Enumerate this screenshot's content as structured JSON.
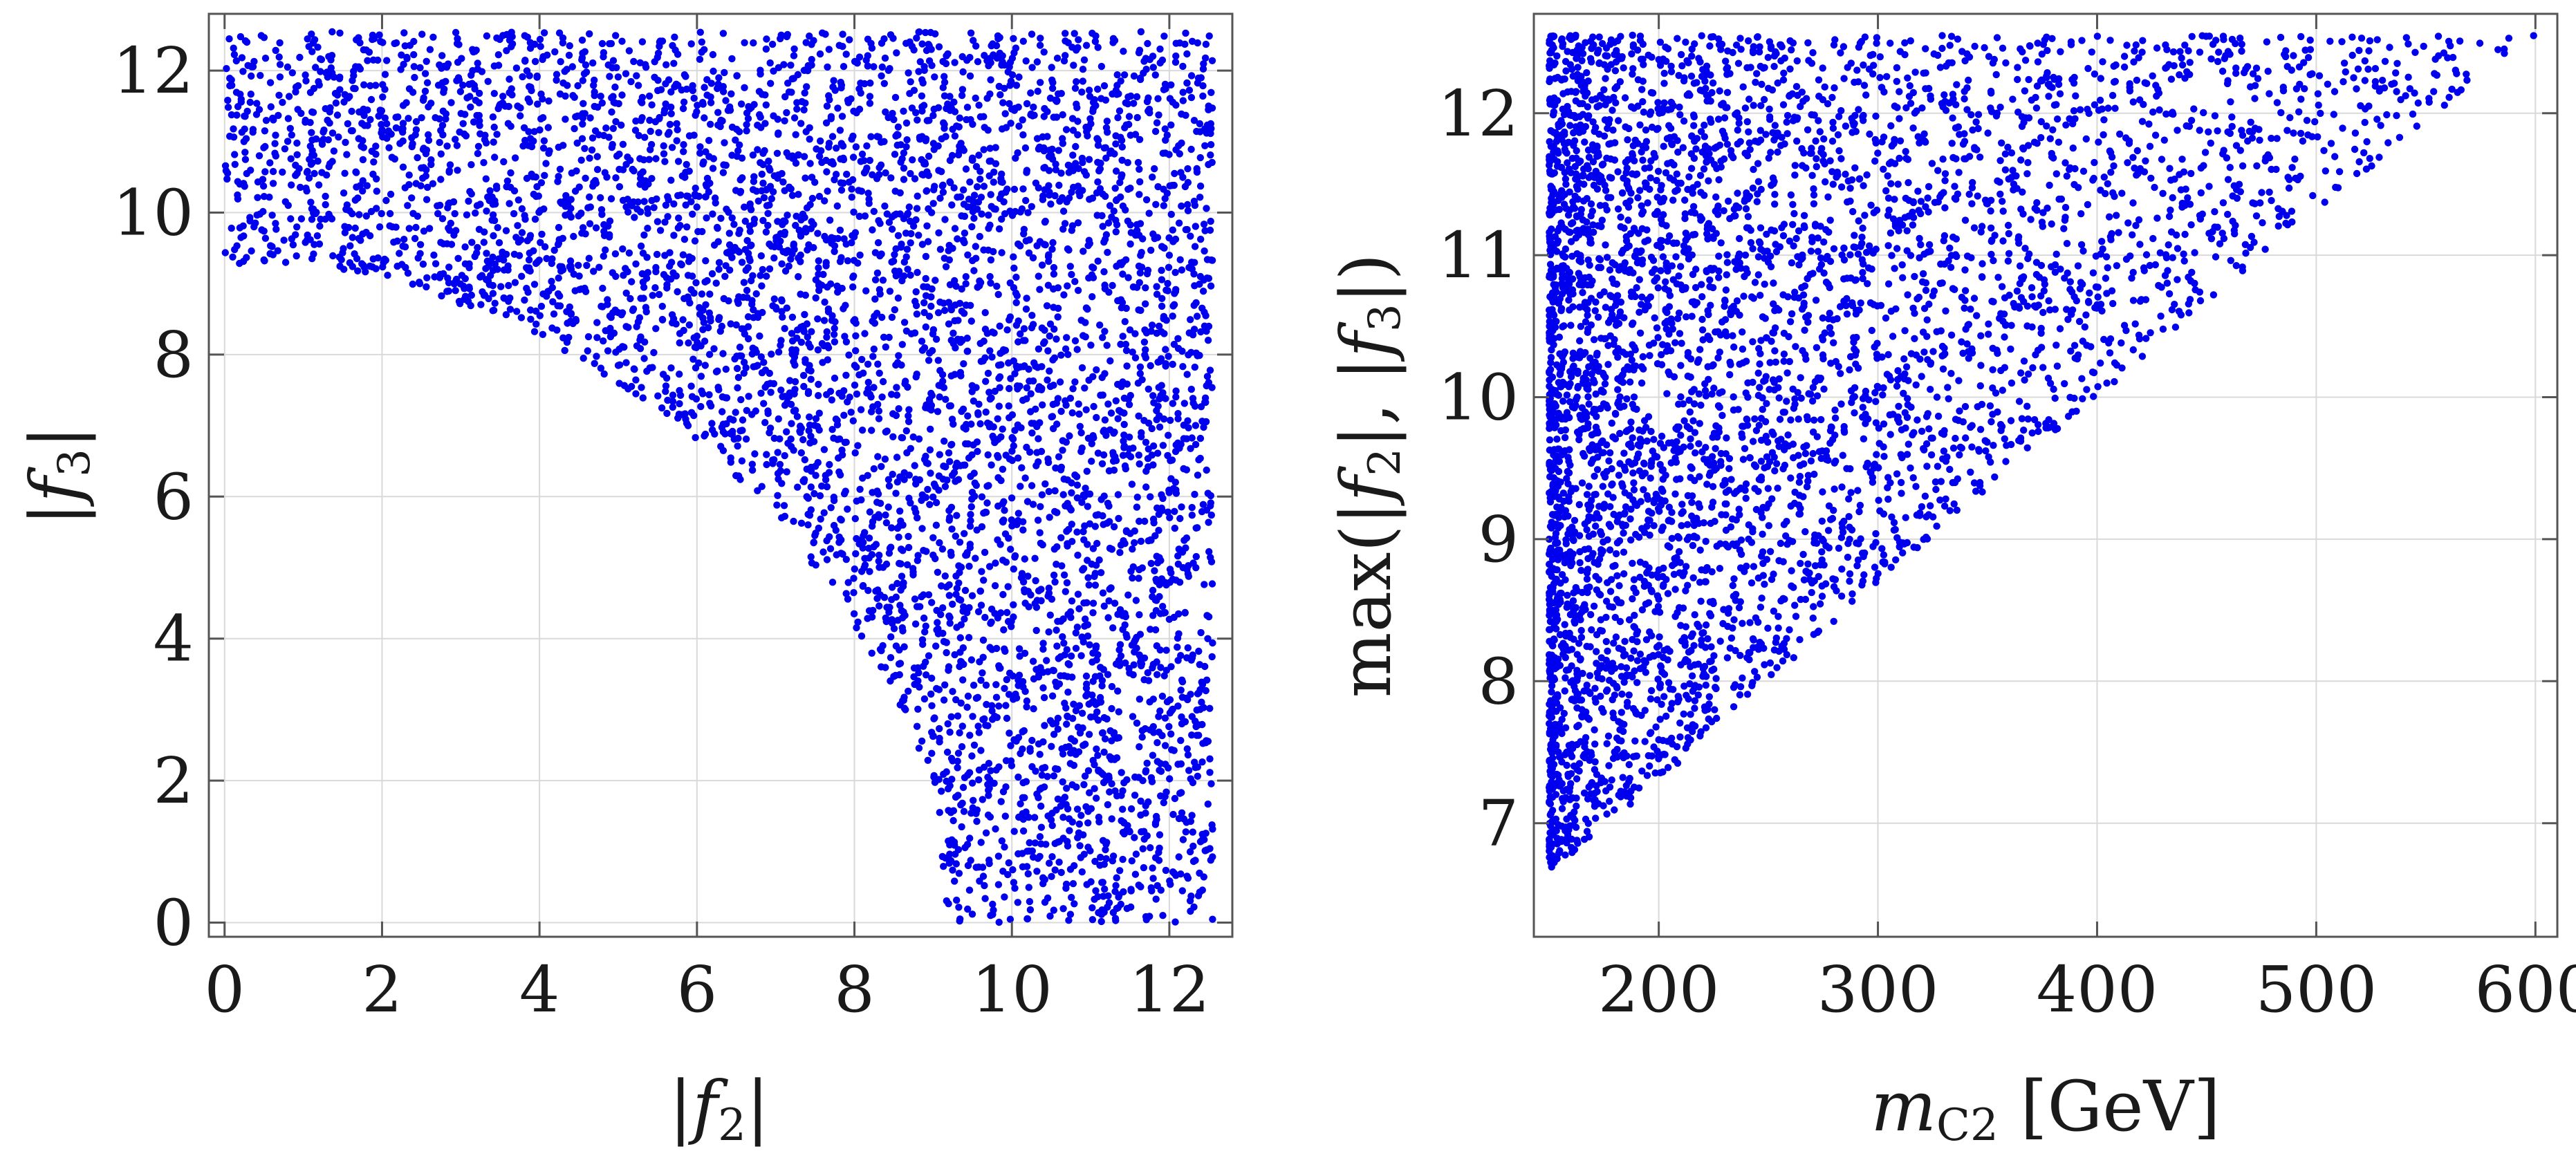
{
  "chart_data": [
    {
      "type": "scatter",
      "xlabel": "|f2|",
      "ylabel": "|f3|",
      "xlim": [
        -0.2,
        12.8
      ],
      "ylim": [
        -0.2,
        12.8
      ],
      "xticks": [
        "0",
        "2",
        "4",
        "6",
        "8",
        "10",
        "12"
      ],
      "yticks": [
        "0",
        "2",
        "4",
        "6",
        "8",
        "10",
        "12"
      ],
      "grid": true,
      "legend": "none",
      "marker_color": "#0000ee",
      "region_description_points": {
        "boundary_f2": [
          0.0,
          1.0,
          2.0,
          3.0,
          4.0,
          5.0,
          6.0,
          7.0,
          8.0,
          8.6,
          9.0,
          9.2
        ],
        "boundary_f3": [
          9.2,
          9.3,
          9.1,
          8.7,
          8.2,
          7.6,
          6.8,
          5.7,
          4.2,
          3.0,
          2.0,
          0.0
        ],
        "x_range": [
          0.0,
          12.55
        ],
        "y_range": [
          0.0,
          12.55
        ]
      }
    },
    {
      "type": "scatter",
      "xlabel": "mC2 [GeV]",
      "ylabel": "max(|f2|, |f3|)",
      "xlim": [
        143,
        610
      ],
      "ylim": [
        6.2,
        12.7
      ],
      "xticks": [
        "200",
        "300",
        "400",
        "500",
        "600"
      ],
      "yticks": [
        "7",
        "8",
        "9",
        "10",
        "11",
        "12"
      ],
      "grid": true,
      "legend": "none",
      "marker_color": "#0000ee",
      "region_description_points": {
        "left_edge_x": 150,
        "lower_edge_x": [
          150,
          200,
          300,
          400,
          500,
          600
        ],
        "lower_edge_y": [
          6.65,
          7.3,
          8.7,
          10.0,
          11.3,
          12.55
        ],
        "y_max": 12.55
      }
    }
  ]
}
